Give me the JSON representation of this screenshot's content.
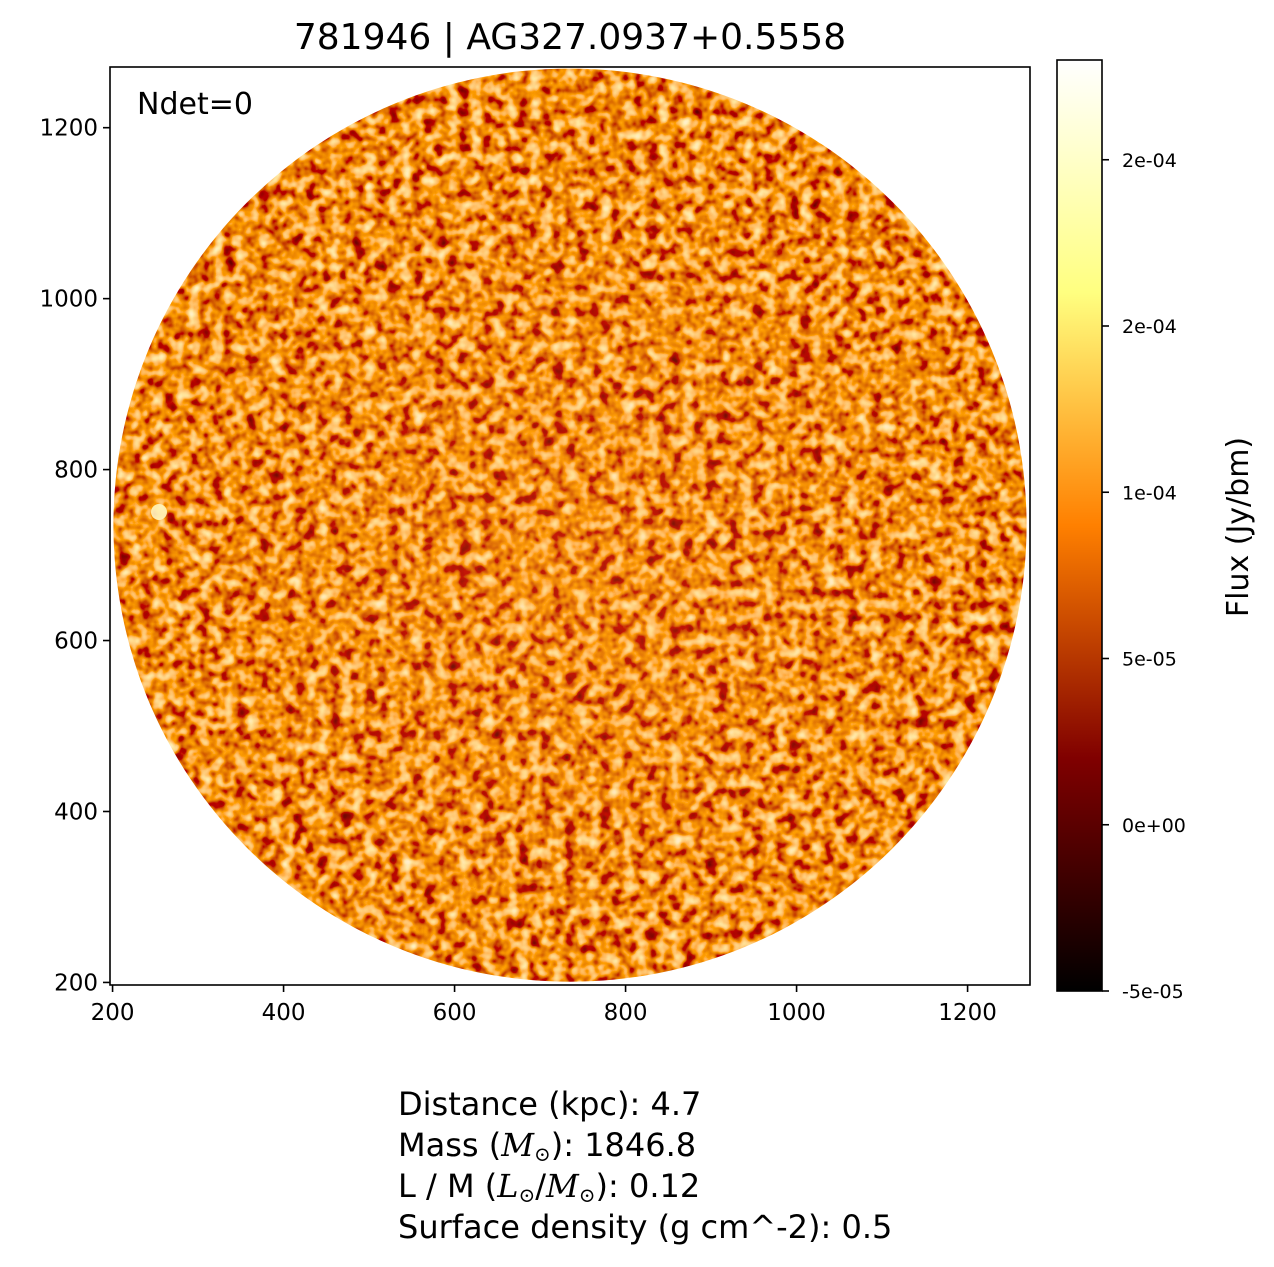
{
  "chart_data": {
    "type": "heatmap",
    "title": "781946 | AG327.0937+0.5558",
    "annotation": "Ndet=0",
    "x_ticks": [
      "200",
      "400",
      "600",
      "800",
      "1000",
      "1200"
    ],
    "x_tick_values": [
      200,
      400,
      600,
      800,
      1000,
      1200
    ],
    "xlim": [
      197,
      1273
    ],
    "y_ticks": [
      "200",
      "400",
      "600",
      "800",
      "1000",
      "1200"
    ],
    "y_tick_values": [
      200,
      400,
      600,
      800,
      1000,
      1200
    ],
    "ylim": [
      197,
      1271
    ],
    "image_center": [
      735,
      735
    ],
    "image_radius": 534,
    "colormap": "afmhot",
    "colorbar": {
      "label": "Flux (Jy/bm)",
      "ticks": [
        "-5e-05",
        "0e+00",
        "5e-05",
        "1e-04",
        "2e-04",
        "2e-04"
      ],
      "tick_values": [
        -5e-05,
        0.0,
        5e-05,
        0.0001,
        0.00015,
        0.0002
      ],
      "vmin": -5e-05,
      "vmax": 0.00023
    },
    "properties": {
      "distance_label": "Distance (kpc): 4.7",
      "mass_prefix": "Mass (",
      "mass_symbol": "M",
      "mass_suffix": "): 1846.8",
      "lm_prefix": "L / M (",
      "lm_symbol_l": "L",
      "lm_slash": "/",
      "lm_symbol_m": "M",
      "lm_suffix": "): 0.12",
      "sun_sub": "⊙",
      "surface_density_label": "Surface density (g cm^-2): 0.5"
    }
  }
}
